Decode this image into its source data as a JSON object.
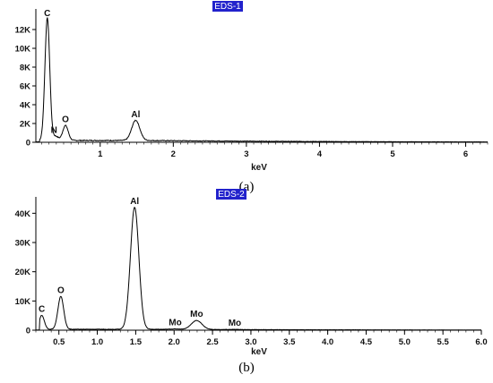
{
  "chart_data": [
    {
      "type": "line",
      "title": "EDS-1",
      "caption": "(a)",
      "xlabel": "keV",
      "ylabel": "",
      "color": "#000000",
      "title_bg": "#2222cc",
      "xlim": [
        0,
        6.3
      ],
      "ylim": [
        0,
        14000
      ],
      "x_ticks": [
        1,
        2,
        3,
        4,
        5,
        6
      ],
      "x_tick_labels": [
        "1",
        "2",
        "3",
        "4",
        "5",
        "6"
      ],
      "y_ticks": [
        0,
        2000,
        4000,
        6000,
        8000,
        10000,
        12000
      ],
      "y_tick_labels": [
        "0",
        "2K",
        "4K",
        "6K",
        "8K",
        "10K",
        "12K"
      ],
      "peaks": [
        {
          "label": "C",
          "x": 0.277,
          "y": 13200
        },
        {
          "label": "N",
          "x": 0.392,
          "y": 600
        },
        {
          "label": "O",
          "x": 0.525,
          "y": 1750
        },
        {
          "label": "Al",
          "x": 1.486,
          "y": 2300
        }
      ],
      "baseline": 150
    },
    {
      "type": "line",
      "title": "EDS-2",
      "caption": "(b)",
      "xlabel": "keV",
      "ylabel": "",
      "color": "#000000",
      "title_bg": "#2222cc",
      "xlim": [
        0,
        6.0
      ],
      "ylim": [
        0,
        45000
      ],
      "x_ticks": [
        0.5,
        1.0,
        1.5,
        2.0,
        2.5,
        3.0,
        3.5,
        4.0,
        4.5,
        5.0,
        5.5,
        6.0
      ],
      "x_tick_labels": [
        "0.5",
        "1.0",
        "1.5",
        "2.0",
        "2.5",
        "3.0",
        "3.5",
        "4.0",
        "4.5",
        "5.0",
        "5.5",
        "6.0"
      ],
      "y_ticks": [
        0,
        10000,
        20000,
        30000,
        40000
      ],
      "y_tick_labels": [
        "0",
        "10K",
        "20K",
        "30K",
        "40K"
      ],
      "peaks": [
        {
          "label": "C",
          "x": 0.277,
          "y": 5000
        },
        {
          "label": "O",
          "x": 0.525,
          "y": 11500
        },
        {
          "label": "Al",
          "x": 1.486,
          "y": 42000
        },
        {
          "label": "Mo",
          "x": 2.015,
          "y": 400
        },
        {
          "label": "Mo",
          "x": 2.293,
          "y": 3300
        },
        {
          "label": "Mo",
          "x": 2.79,
          "y": 300
        }
      ],
      "baseline": 250
    }
  ]
}
